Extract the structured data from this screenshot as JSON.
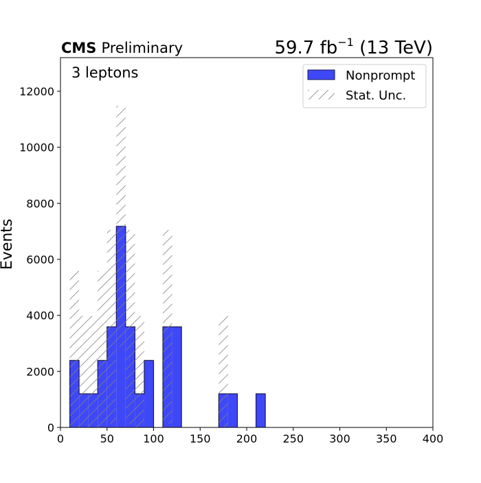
{
  "chart_data": {
    "type": "bar",
    "header": {
      "experiment": "CMS",
      "status": "Preliminary",
      "lumi_value": "59.7 fb",
      "lumi_exponent": "−1",
      "energy": " (13 TeV)"
    },
    "annotation": "3 leptons",
    "xlabel": "",
    "ylabel": "Events",
    "xlim": [
      0,
      400
    ],
    "ylim": [
      0,
      13200
    ],
    "xticks": [
      0,
      50,
      100,
      150,
      200,
      250,
      300,
      350,
      400
    ],
    "yticks": [
      0,
      2000,
      4000,
      6000,
      8000,
      10000,
      12000
    ],
    "legend": {
      "placement": "top-right",
      "entries": [
        {
          "label": "Nonprompt",
          "style": "filled",
          "color": "#3f48f7"
        },
        {
          "label": "Stat. Unc.",
          "style": "hatched",
          "color": "#808080"
        }
      ]
    },
    "series": [
      {
        "name": "Nonprompt",
        "color": "#3f48f7",
        "bins": [
          {
            "low": 10,
            "high": 20,
            "value": 2390,
            "unc": 3200
          },
          {
            "low": 20,
            "high": 30,
            "value": 1200,
            "unc": 2780
          },
          {
            "low": 30,
            "high": 40,
            "value": 1200,
            "unc": 2780
          },
          {
            "low": 40,
            "high": 50,
            "value": 2390,
            "unc": 3200
          },
          {
            "low": 50,
            "high": 60,
            "value": 3590,
            "unc": 3460
          },
          {
            "low": 60,
            "high": 70,
            "value": 7180,
            "unc": 4300
          },
          {
            "low": 70,
            "high": 80,
            "value": 3590,
            "unc": 3460
          },
          {
            "low": 80,
            "high": 90,
            "value": 1200,
            "unc": 2780
          },
          {
            "low": 90,
            "high": 100,
            "value": 2390,
            "unc": 0
          },
          {
            "low": 110,
            "high": 120,
            "value": 3590,
            "unc": 3460
          },
          {
            "low": 120,
            "high": 130,
            "value": 3590,
            "unc": 0
          },
          {
            "low": 170,
            "high": 180,
            "value": 1200,
            "unc": 2780
          },
          {
            "low": 180,
            "high": 190,
            "value": 1200,
            "unc": 0
          },
          {
            "low": 210,
            "high": 220,
            "value": 1200,
            "unc": 0
          }
        ]
      }
    ],
    "grid": false
  }
}
